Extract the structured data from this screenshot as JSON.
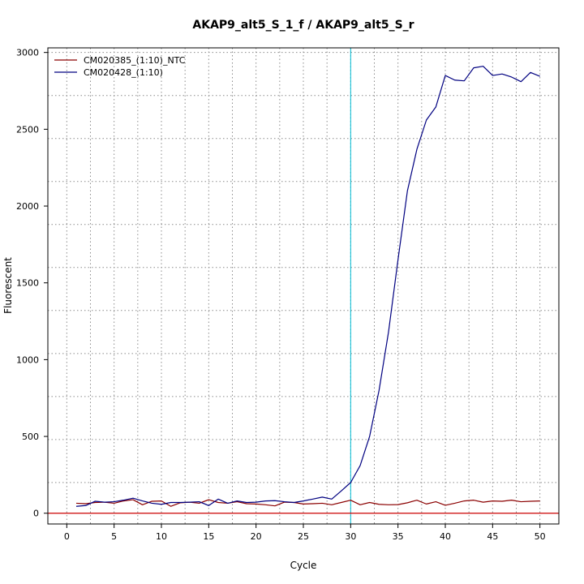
{
  "chart_data": {
    "type": "line",
    "title": "AKAP9_alt5_S_1_f / AKAP9_alt5_S_r",
    "xlabel": "Cycle",
    "ylabel": "Fluorescent",
    "xlim": [
      -2,
      52
    ],
    "ylim": [
      -70,
      3030
    ],
    "x_ticks": [
      0,
      5,
      10,
      15,
      20,
      25,
      30,
      35,
      40,
      45,
      50
    ],
    "y_ticks": [
      0,
      500,
      1000,
      1500,
      2000,
      2500,
      3000
    ],
    "x_grid": [
      2.5,
      7.5,
      12.5,
      17.5,
      22.5,
      27.5,
      32.5,
      37.5,
      42.5,
      47.5
    ],
    "y_grid": [
      200,
      480,
      760,
      1040,
      1320,
      1600,
      1880,
      2160,
      2440,
      2720,
      3000
    ],
    "grid": true,
    "threshold_x": 30,
    "threshold_color": "#00bcd4",
    "baseline_y": 0,
    "baseline_color": "#cc0000",
    "legend_position": "top-left",
    "x": [
      1,
      2,
      3,
      4,
      5,
      6,
      7,
      8,
      9,
      10,
      11,
      12,
      13,
      14,
      15,
      16,
      17,
      18,
      19,
      20,
      21,
      22,
      23,
      24,
      25,
      26,
      27,
      28,
      29,
      30,
      31,
      32,
      33,
      34,
      35,
      36,
      37,
      38,
      39,
      40,
      41,
      42,
      43,
      44,
      45,
      46,
      47,
      48,
      49,
      50
    ],
    "series": [
      {
        "name": "CM020385_(1:10)_NTC",
        "color": "#8b0000",
        "values": [
          65,
          62,
          70,
          72,
          65,
          80,
          88,
          55,
          78,
          80,
          45,
          68,
          72,
          65,
          88,
          70,
          65,
          75,
          62,
          60,
          55,
          48,
          72,
          70,
          60,
          62,
          65,
          55,
          70,
          85,
          55,
          70,
          58,
          55,
          56,
          68,
          85,
          60,
          75,
          52,
          65,
          80,
          85,
          72,
          80,
          78,
          85,
          75,
          78,
          80
        ]
      },
      {
        "name": "CM020428_(1:10)",
        "color": "#000080",
        "values": [
          45,
          50,
          78,
          72,
          75,
          85,
          98,
          80,
          65,
          58,
          70,
          70,
          72,
          75,
          50,
          92,
          65,
          80,
          70,
          72,
          80,
          82,
          75,
          70,
          80,
          92,
          105,
          92,
          145,
          200,
          310,
          500,
          800,
          1180,
          1650,
          2100,
          2370,
          2560,
          2645,
          2850,
          2820,
          2815,
          2900,
          2910,
          2850,
          2860,
          2840,
          2810,
          2870,
          2845
        ]
      }
    ]
  }
}
